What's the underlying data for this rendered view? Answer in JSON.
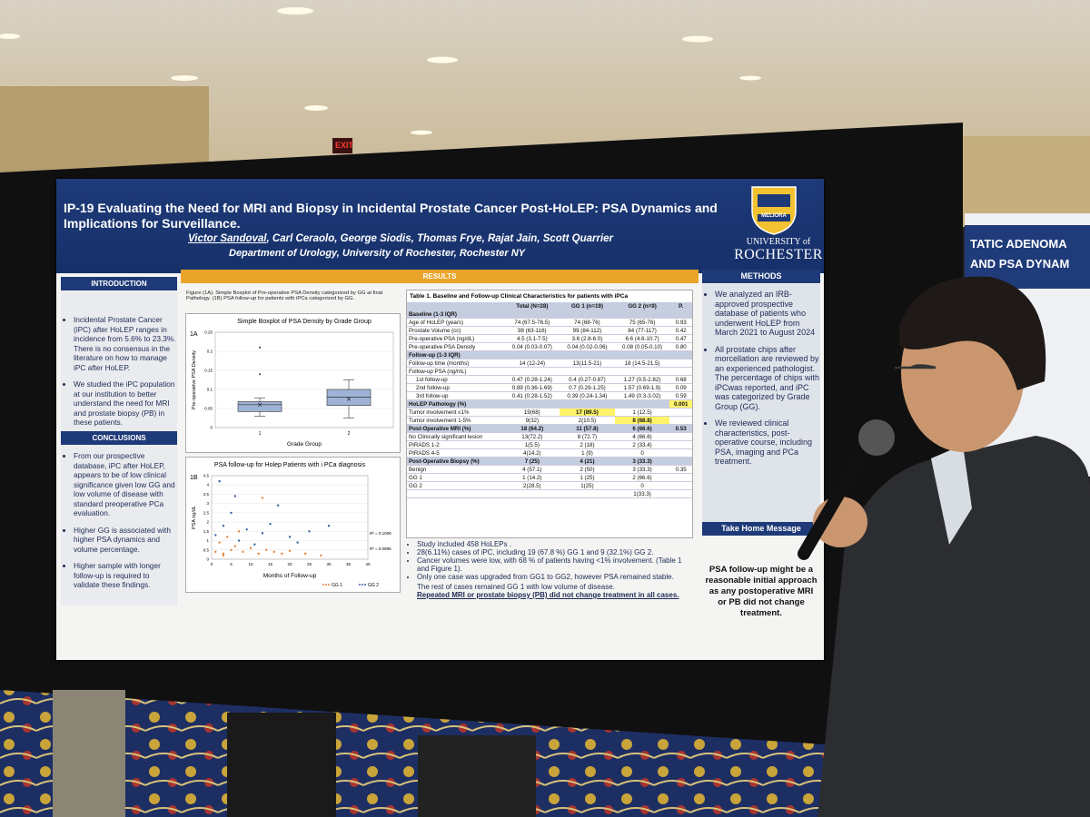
{
  "background": {
    "exit_sign": "EXIT",
    "side_poster": [
      "TATIC ADENOMA",
      "AND PSA DYNAM"
    ]
  },
  "header": {
    "title": "IP-19 Evaluating the Need for MRI and Biopsy in Incidental Prostate Cancer Post-HoLEP: PSA Dynamics and Implications for Surveillance.",
    "lead_author": "Victor Sandoval",
    "authors": ", Carl Ceraolo, George Siodis, Thomas Frye, Rajat Jain, Scott Quarrier",
    "department": "Department of Urology, University of Rochester, Rochester NY",
    "motto": "MELIORA",
    "university": [
      "UNIVERSITY of",
      "ROCHESTER"
    ]
  },
  "introduction": {
    "heading": "INTRODUCTION",
    "items": [
      "Incidental Prostate Cancer (iPC) after HoLEP ranges in incidence from 5.6% to 23.3%. There is no consensus in the literature on how to manage iPC after HoLEP.",
      "We studied the iPC population at our institution to better understand the need for MRI and prostate biopsy (PB) in these patients."
    ]
  },
  "conclusions": {
    "heading": "CONCLUSIONS",
    "items": [
      "From our prospective database, iPC after HoLEP, appears to be of low clinical significance given low GG and low volume of disease with standard preoperative PCa evaluation.",
      "Higher GG is associated with higher PSA dynamics and volume percentage.",
      "Higher sample with longer follow-up is required to validate these findings."
    ]
  },
  "results": {
    "heading": "RESULTS",
    "figure_caption": "Figure (1A). Simple Boxplot of Pre-operative PSA Density categorized by GG at final Pathology. (1B) PSA follow-up for patients with iPCa categorized by GG.",
    "fig1a": {
      "type": "box",
      "panel": "1A",
      "title": "Simple Boxplot of PSA Density by Grade Group",
      "ylabel": "Pre-operative PSA Density",
      "xlabel": "Grade Group",
      "categories": [
        "1",
        "2"
      ],
      "ylim": [
        0,
        0.25
      ],
      "yticks": [
        0,
        0.05,
        0.1,
        0.15,
        0.2,
        0.25
      ],
      "color": "#9fb3d6",
      "boxes": [
        {
          "whisker_low": 0.03,
          "q1": 0.042,
          "median": 0.06,
          "q3": 0.068,
          "whisker_high": 0.078,
          "mean": 0.06,
          "outliers": [
            0.14,
            0.21
          ]
        },
        {
          "whisker_low": 0.025,
          "q1": 0.058,
          "median": 0.08,
          "q3": 0.1,
          "whisker_high": 0.125,
          "mean": 0.075,
          "outliers": []
        }
      ]
    },
    "fig1b": {
      "type": "scatter",
      "panel": "1B",
      "title": "PSA follow-up for Holep Patients with i PCa diagnosis",
      "ylabel": "PSA ng/dL",
      "xlabel": "Months of Follow-up",
      "xlim": [
        0,
        40
      ],
      "xticks": [
        0,
        5,
        10,
        15,
        20,
        25,
        30,
        35,
        40
      ],
      "ylim": [
        0,
        4.5
      ],
      "yticks": [
        0,
        0.5,
        1,
        1.5,
        2,
        2.5,
        3,
        3.5,
        4,
        4.5
      ],
      "annotations": [
        "R² = 0.1009",
        "R² = 0.0895"
      ],
      "series": [
        {
          "name": "GG 1",
          "color": "#e8833a",
          "x": [
            1,
            2,
            3,
            4,
            5,
            6,
            8,
            10,
            12,
            14,
            16,
            18,
            20,
            24,
            28,
            13,
            7,
            3
          ],
          "y": [
            0.4,
            0.9,
            0.3,
            1.2,
            0.5,
            0.7,
            0.4,
            0.6,
            0.3,
            0.5,
            0.4,
            0.3,
            0.45,
            0.3,
            0.2,
            3.3,
            1.5,
            0.2
          ]
        },
        {
          "name": "GG 2",
          "color": "#3a5fa8",
          "x": [
            1,
            2,
            3,
            5,
            7,
            9,
            11,
            13,
            15,
            17,
            20,
            22,
            25,
            30,
            6
          ],
          "y": [
            1.3,
            4.2,
            1.8,
            2.5,
            1.0,
            1.6,
            0.8,
            1.4,
            1.9,
            2.9,
            1.2,
            0.9,
            1.5,
            1.8,
            3.4
          ]
        }
      ]
    },
    "table": {
      "title": "Table 1. Baseline and Follow-up Clinical Characteristics for patients with iPCa",
      "highlight_color": "#fff36a",
      "rows": [
        {
          "header": true,
          "cells": [
            null,
            "Total (N=28)",
            "GG 1 (n=19)",
            "GG 2 (n=9)",
            "P."
          ]
        },
        {
          "section": true,
          "cells": [
            "Baseline (1-3 IQR)"
          ]
        },
        {
          "cells": [
            "Age of HoLEP (years)",
            "74 (67.5-76.5)",
            "74 (68-76)",
            "75 (65-76)",
            "0.93"
          ]
        },
        {
          "cells": [
            "Prostate Volume (cc)",
            "98 (63-116)",
            "99 (84-112)",
            "84 (77-117)",
            "0.42"
          ]
        },
        {
          "cells": [
            "Pre-operative PSA (ng/dL)",
            "4.5 (3.1-7.5)",
            "3.6 (2.8-6.0)",
            "6.6 (4.6-10.7)",
            "0.47"
          ]
        },
        {
          "cells": [
            "Pre-operative PSA Density",
            "0.04 (0.03-0.07)",
            "0.04 (0.02-0.06)",
            "0.08 (0.05-0.10)",
            "0.80"
          ]
        },
        {
          "section": true,
          "cells": [
            "Follow-up (1-3 IQR)"
          ]
        },
        {
          "cells": [
            "Follow-up time (months)",
            "14 (12-24)",
            "13(11.5-21)",
            "18 (14.5-21.5)"
          ]
        },
        {
          "cells": [
            "Follow-up PSA (ng/mL)"
          ]
        },
        {
          "cells": [
            "1st follow-up",
            "0.47 (0.28-1.24)",
            "0.4 (0.27-0.87)",
            "1.27 (0.5-2.82)",
            "0.68"
          ]
        },
        {
          "cells": [
            "2nd follow-up",
            "0.89 (0.36-1.69)",
            "0.7 (0.29-1.25)",
            "1.57 (0.69-1.9)",
            "0.09"
          ]
        },
        {
          "cells": [
            "3rd follow-up",
            "0.41 (0.28-1.52)",
            "0.39 (0.24-1.34)",
            "1.49 (0.3-3.02)",
            "0.59"
          ]
        },
        {
          "section": true,
          "cells": [
            "HoLEP Pathology (%)",
            null,
            null,
            null,
            {
              "text": "0.001",
              "highlight": true
            }
          ]
        },
        {
          "cells": [
            "Tumor involvement ≤1%",
            "19(68)",
            {
              "text": "17 (89.5)",
              "highlight": true
            },
            "1 (12.5)"
          ]
        },
        {
          "cells": [
            "Tumor involvement 1-5%",
            "9(32)",
            "2(10.5)",
            {
              "text": "8 (88.8)",
              "highlight": true
            }
          ]
        },
        {
          "section": true,
          "cells": [
            "Post-Operative MRI (%)",
            "18 (64.2)",
            "11 (57.8)",
            "6 (66.6)",
            "0.53"
          ]
        },
        {
          "cells": [
            "No Clinically significant lesion",
            "13(72.2)",
            "8 (72.7)",
            "4 (66.6)"
          ]
        },
        {
          "cells": [
            "PIRADS 1-2",
            "1(5.5)",
            "2 (18)",
            "2 (33.4)"
          ]
        },
        {
          "cells": [
            "PIRADS 4-5",
            "4(14.2)",
            "1 (9)",
            "0"
          ]
        },
        {
          "section": true,
          "cells": [
            "Post-Operative Biopsy (%)",
            "7 (25)",
            "4 (21)",
            "3 (33.3)"
          ]
        },
        {
          "cells": [
            "Benign",
            "4 (57.1)",
            "2 (50)",
            "3 (33.3)",
            "0.35"
          ]
        },
        {
          "cells": [
            "GG 1",
            "1 (14.2)",
            "1 (25)",
            "2 (66.6)"
          ]
        },
        {
          "cells": [
            "GG 2",
            "2(28.5)",
            "1(25)",
            "0"
          ]
        },
        {
          "cells": [
            null,
            null,
            null,
            "1(33.3)"
          ]
        }
      ]
    },
    "bullets": [
      "Study included 458 HoLEPs .",
      "28(6.11%) cases of iPC, including 19 (67.8 %) GG 1 and 9 (32.1%) GG 2.",
      "Cancer volumes were low, with 68 % of patients having <1% involvement. (Table 1 and Figure 1).",
      "Only one case was upgraded from GG1 to GG2, however PSA remained stable."
    ],
    "closing": "The rest of cases remained GG 1 with low volume of disease.",
    "closing_emphasis": "Repeated MRI or prostate biopsy (PB) did not change treatment in all cases."
  },
  "methods": {
    "heading": "METHODS",
    "items": [
      "We analyzed an IRB-approved prospective database of patients who underwent HoLEP from March 2021 to August 2024",
      "All prostate chips after morcellation are reviewed by an experienced pathologist. The percentage of chips with iPCwas reported, and iPC was categorized by Grade Group (GG).",
      "We reviewed clinical characteristics, post-operative course, including PSA, imaging and PCa treatment."
    ]
  },
  "take_home": {
    "heading": "Take Home Message",
    "text": "PSA follow-up might be a reasonable initial approach as any postoperative MRI or PB did not change treatment."
  }
}
